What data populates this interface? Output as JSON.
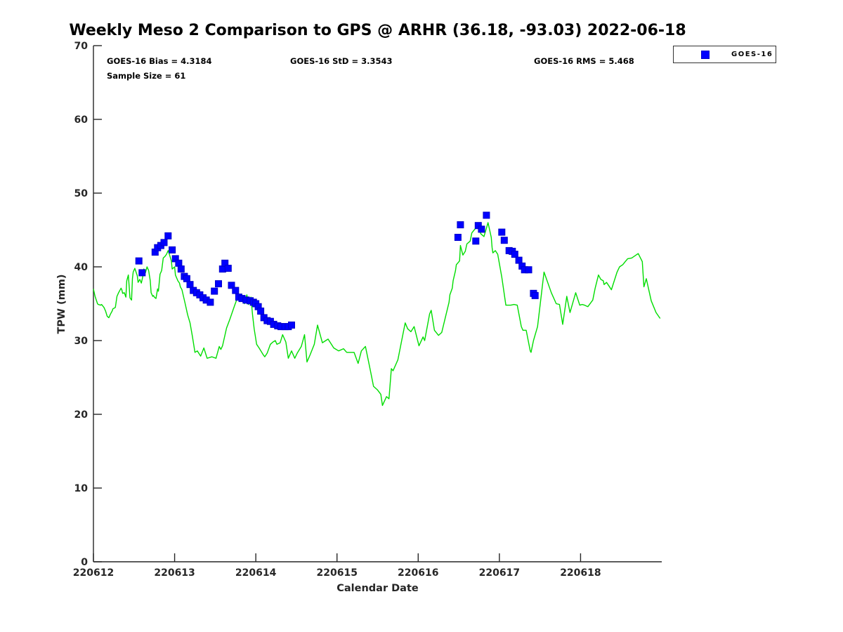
{
  "title": "Weekly Meso 2 Comparison to GPS @ ARHR (36.18, -93.03) 2022-06-18",
  "stats": {
    "bias": "GOES-16 Bias = 4.3184",
    "std": "GOES-16 StD = 3.3543",
    "rms": "GOES-16 RMS = 5.468",
    "sample_size": "Sample Size = 61"
  },
  "legend": {
    "entries": [
      {
        "label": "GOES-16",
        "marker": "square",
        "color": "#0000FF"
      }
    ]
  },
  "chart_data": {
    "type": "line",
    "title": "Weekly Meso 2 Comparison to GPS @ ARHR (36.18, -93.03) 2022-06-18",
    "xlabel": "Calendar Date",
    "ylabel": "TPW (mm)",
    "x_tick_labels": [
      "220612",
      "220613",
      "220614",
      "220615",
      "220616",
      "220617",
      "220618"
    ],
    "x_units": "days since 220612",
    "xlim": [
      0,
      7
    ],
    "ylim": [
      0,
      70
    ],
    "y_ticks": [
      0,
      10,
      20,
      30,
      40,
      50,
      60,
      70
    ],
    "grid": false,
    "legend_position": "top-right",
    "series": [
      {
        "name": "GPS",
        "type": "line",
        "color": "#00DD00",
        "points": [
          [
            0.0,
            37.0
          ],
          [
            0.02,
            36.0
          ],
          [
            0.05,
            35.0
          ],
          [
            0.06,
            34.9
          ],
          [
            0.09,
            34.8
          ],
          [
            0.1,
            34.9
          ],
          [
            0.13,
            34.5
          ],
          [
            0.15,
            34.0
          ],
          [
            0.17,
            33.3
          ],
          [
            0.19,
            33.1
          ],
          [
            0.21,
            33.6
          ],
          [
            0.23,
            34.0
          ],
          [
            0.24,
            34.3
          ],
          [
            0.27,
            34.5
          ],
          [
            0.29,
            36.0
          ],
          [
            0.31,
            36.5
          ],
          [
            0.34,
            37.1
          ],
          [
            0.35,
            36.9
          ],
          [
            0.36,
            36.4
          ],
          [
            0.38,
            36.5
          ],
          [
            0.4,
            35.9
          ],
          [
            0.41,
            38.1
          ],
          [
            0.43,
            38.9
          ],
          [
            0.45,
            35.8
          ],
          [
            0.47,
            35.5
          ],
          [
            0.48,
            38.4
          ],
          [
            0.49,
            39.3
          ],
          [
            0.51,
            39.8
          ],
          [
            0.54,
            38.8
          ],
          [
            0.55,
            37.9
          ],
          [
            0.57,
            38.3
          ],
          [
            0.59,
            37.8
          ],
          [
            0.61,
            38.8
          ],
          [
            0.62,
            39.7
          ],
          [
            0.64,
            39.2
          ],
          [
            0.66,
            40.0
          ],
          [
            0.68,
            39.5
          ],
          [
            0.7,
            38.1
          ],
          [
            0.71,
            36.5
          ],
          [
            0.73,
            36.0
          ],
          [
            0.74,
            36.1
          ],
          [
            0.75,
            35.9
          ],
          [
            0.77,
            35.7
          ],
          [
            0.79,
            37.0
          ],
          [
            0.8,
            36.7
          ],
          [
            0.82,
            39.0
          ],
          [
            0.84,
            39.5
          ],
          [
            0.86,
            41.2
          ],
          [
            0.88,
            41.4
          ],
          [
            0.9,
            41.7
          ],
          [
            0.92,
            42.2
          ],
          [
            0.93,
            41.9
          ],
          [
            0.96,
            40.8
          ],
          [
            0.97,
            39.7
          ],
          [
            1.0,
            40.0
          ],
          [
            1.01,
            38.9
          ],
          [
            1.04,
            38.1
          ],
          [
            1.06,
            37.8
          ],
          [
            1.07,
            37.3
          ],
          [
            1.09,
            36.9
          ],
          [
            1.13,
            35.0
          ],
          [
            1.16,
            33.5
          ],
          [
            1.19,
            32.4
          ],
          [
            1.22,
            30.5
          ],
          [
            1.25,
            28.4
          ],
          [
            1.28,
            28.6
          ],
          [
            1.32,
            27.9
          ],
          [
            1.36,
            29.0
          ],
          [
            1.4,
            27.6
          ],
          [
            1.46,
            27.8
          ],
          [
            1.51,
            27.6
          ],
          [
            1.55,
            29.2
          ],
          [
            1.57,
            28.8
          ],
          [
            1.59,
            29.3
          ],
          [
            1.64,
            31.7
          ],
          [
            1.68,
            32.9
          ],
          [
            1.74,
            34.8
          ],
          [
            1.77,
            35.7
          ],
          [
            1.81,
            36.0
          ],
          [
            1.84,
            35.5
          ],
          [
            1.86,
            35.0
          ],
          [
            1.89,
            36.2
          ],
          [
            1.91,
            34.9
          ],
          [
            1.94,
            35.9
          ],
          [
            1.96,
            33.5
          ],
          [
            1.98,
            31.6
          ],
          [
            2.01,
            29.5
          ],
          [
            2.04,
            29.0
          ],
          [
            2.09,
            28.1
          ],
          [
            2.11,
            27.8
          ],
          [
            2.14,
            28.3
          ],
          [
            2.18,
            29.5
          ],
          [
            2.21,
            29.8
          ],
          [
            2.24,
            30.0
          ],
          [
            2.26,
            29.5
          ],
          [
            2.3,
            29.7
          ],
          [
            2.33,
            30.8
          ],
          [
            2.37,
            29.8
          ],
          [
            2.4,
            27.6
          ],
          [
            2.44,
            28.6
          ],
          [
            2.48,
            27.6
          ],
          [
            2.51,
            28.3
          ],
          [
            2.56,
            29.2
          ],
          [
            2.6,
            30.8
          ],
          [
            2.63,
            27.1
          ],
          [
            2.67,
            28.1
          ],
          [
            2.72,
            29.5
          ],
          [
            2.76,
            32.1
          ],
          [
            2.82,
            29.7
          ],
          [
            2.89,
            30.2
          ],
          [
            2.96,
            29.0
          ],
          [
            3.02,
            28.6
          ],
          [
            3.08,
            28.9
          ],
          [
            3.12,
            28.4
          ],
          [
            3.21,
            28.4
          ],
          [
            3.26,
            26.9
          ],
          [
            3.3,
            28.6
          ],
          [
            3.35,
            29.2
          ],
          [
            3.41,
            26.0
          ],
          [
            3.45,
            23.8
          ],
          [
            3.5,
            23.3
          ],
          [
            3.54,
            22.7
          ],
          [
            3.56,
            21.2
          ],
          [
            3.61,
            22.4
          ],
          [
            3.64,
            22.1
          ],
          [
            3.67,
            26.2
          ],
          [
            3.69,
            25.9
          ],
          [
            3.75,
            27.4
          ],
          [
            3.8,
            30.2
          ],
          [
            3.84,
            32.4
          ],
          [
            3.87,
            31.6
          ],
          [
            3.91,
            31.2
          ],
          [
            3.95,
            31.9
          ],
          [
            4.01,
            29.3
          ],
          [
            4.06,
            30.5
          ],
          [
            4.08,
            30.0
          ],
          [
            4.14,
            33.6
          ],
          [
            4.16,
            34.1
          ],
          [
            4.2,
            31.4
          ],
          [
            4.25,
            30.7
          ],
          [
            4.29,
            31.1
          ],
          [
            4.36,
            34.3
          ],
          [
            4.38,
            35.2
          ],
          [
            4.39,
            36.2
          ],
          [
            4.42,
            37.1
          ],
          [
            4.43,
            38.1
          ],
          [
            4.46,
            39.5
          ],
          [
            4.47,
            40.3
          ],
          [
            4.51,
            40.8
          ],
          [
            4.52,
            42.9
          ],
          [
            4.55,
            41.6
          ],
          [
            4.58,
            42.1
          ],
          [
            4.6,
            43.1
          ],
          [
            4.64,
            43.5
          ],
          [
            4.66,
            44.6
          ],
          [
            4.69,
            45.0
          ],
          [
            4.72,
            45.4
          ],
          [
            4.75,
            45.5
          ],
          [
            4.77,
            44.5
          ],
          [
            4.81,
            44.1
          ],
          [
            4.86,
            46.0
          ],
          [
            4.9,
            44.0
          ],
          [
            4.91,
            42.6
          ],
          [
            4.92,
            41.9
          ],
          [
            4.95,
            42.2
          ],
          [
            4.98,
            41.7
          ],
          [
            5.03,
            38.6
          ],
          [
            5.08,
            34.8
          ],
          [
            5.14,
            34.8
          ],
          [
            5.18,
            34.9
          ],
          [
            5.22,
            34.8
          ],
          [
            5.27,
            31.9
          ],
          [
            5.29,
            31.4
          ],
          [
            5.33,
            31.4
          ],
          [
            5.38,
            28.6
          ],
          [
            5.39,
            28.4
          ],
          [
            5.42,
            30.0
          ],
          [
            5.47,
            31.9
          ],
          [
            5.55,
            39.3
          ],
          [
            5.64,
            36.5
          ],
          [
            5.7,
            35.0
          ],
          [
            5.74,
            34.9
          ],
          [
            5.78,
            32.2
          ],
          [
            5.83,
            36.0
          ],
          [
            5.87,
            33.8
          ],
          [
            5.94,
            36.5
          ],
          [
            5.99,
            34.8
          ],
          [
            6.02,
            34.9
          ],
          [
            6.05,
            34.8
          ],
          [
            6.09,
            34.6
          ],
          [
            6.15,
            35.5
          ],
          [
            6.18,
            37.1
          ],
          [
            6.22,
            38.9
          ],
          [
            6.25,
            38.3
          ],
          [
            6.28,
            38.1
          ],
          [
            6.29,
            37.6
          ],
          [
            6.32,
            37.9
          ],
          [
            6.35,
            37.4
          ],
          [
            6.38,
            36.9
          ],
          [
            6.45,
            39.3
          ],
          [
            6.48,
            40.0
          ],
          [
            6.52,
            40.3
          ],
          [
            6.55,
            40.7
          ],
          [
            6.58,
            41.1
          ],
          [
            6.63,
            41.2
          ],
          [
            6.71,
            41.8
          ],
          [
            6.76,
            40.7
          ],
          [
            6.78,
            37.3
          ],
          [
            6.81,
            38.4
          ],
          [
            6.87,
            35.4
          ],
          [
            6.93,
            33.8
          ],
          [
            6.98,
            33.0
          ]
        ]
      },
      {
        "name": "GOES-16",
        "type": "scatter",
        "marker": "square",
        "color": "#0000FF",
        "points": [
          [
            0.56,
            40.8
          ],
          [
            0.6,
            39.2
          ],
          [
            0.76,
            42.0
          ],
          [
            0.79,
            42.6
          ],
          [
            0.83,
            42.9
          ],
          [
            0.87,
            43.3
          ],
          [
            0.92,
            44.2
          ],
          [
            0.97,
            42.3
          ],
          [
            1.01,
            41.1
          ],
          [
            1.05,
            40.5
          ],
          [
            1.08,
            39.7
          ],
          [
            1.12,
            38.7
          ],
          [
            1.15,
            38.4
          ],
          [
            1.19,
            37.6
          ],
          [
            1.23,
            36.8
          ],
          [
            1.27,
            36.5
          ],
          [
            1.31,
            36.2
          ],
          [
            1.35,
            35.8
          ],
          [
            1.39,
            35.5
          ],
          [
            1.44,
            35.2
          ],
          [
            1.49,
            36.7
          ],
          [
            1.54,
            37.7
          ],
          [
            1.59,
            39.7
          ],
          [
            1.62,
            40.5
          ],
          [
            1.66,
            39.8
          ],
          [
            1.7,
            37.5
          ],
          [
            1.75,
            36.8
          ],
          [
            1.79,
            35.9
          ],
          [
            1.83,
            35.7
          ],
          [
            1.88,
            35.5
          ],
          [
            1.93,
            35.4
          ],
          [
            1.97,
            35.2
          ],
          [
            2.0,
            35.0
          ],
          [
            2.03,
            34.6
          ],
          [
            2.06,
            34.0
          ],
          [
            2.1,
            33.1
          ],
          [
            2.14,
            32.7
          ],
          [
            2.18,
            32.6
          ],
          [
            2.22,
            32.2
          ],
          [
            2.27,
            32.0
          ],
          [
            2.31,
            31.9
          ],
          [
            2.36,
            31.9
          ],
          [
            2.4,
            31.9
          ],
          [
            2.44,
            32.1
          ],
          [
            4.49,
            44.0
          ],
          [
            4.52,
            45.7
          ],
          [
            4.71,
            43.5
          ],
          [
            4.74,
            45.6
          ],
          [
            4.78,
            45.1
          ],
          [
            4.84,
            47.0
          ],
          [
            5.03,
            44.7
          ],
          [
            5.06,
            43.6
          ],
          [
            5.12,
            42.2
          ],
          [
            5.16,
            42.1
          ],
          [
            5.19,
            41.7
          ],
          [
            5.24,
            40.9
          ],
          [
            5.28,
            40.1
          ],
          [
            5.31,
            39.6
          ],
          [
            5.36,
            39.6
          ],
          [
            5.42,
            36.4
          ],
          [
            5.44,
            36.1
          ]
        ]
      }
    ]
  },
  "colors": {
    "gps_line": "#00DD00",
    "goes16_marker": "#0000FF",
    "axis": "#262626",
    "text": "#000000",
    "background": "#FFFFFF"
  }
}
